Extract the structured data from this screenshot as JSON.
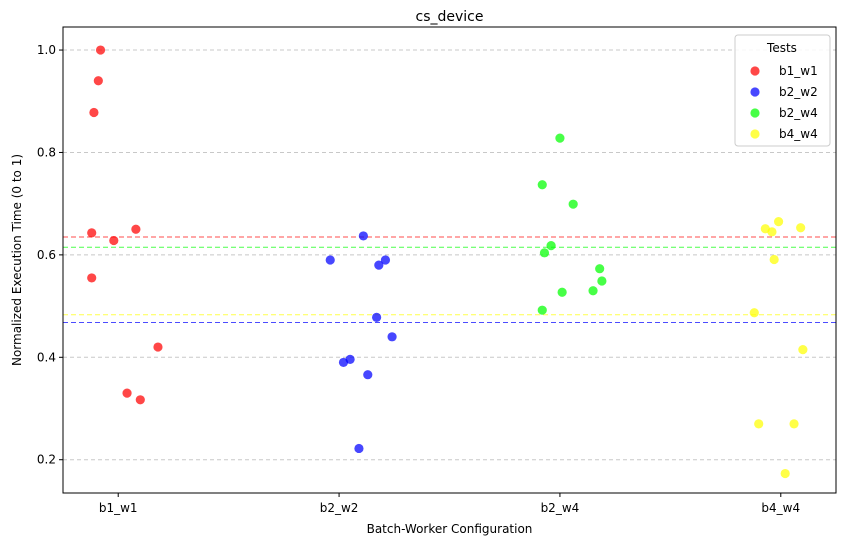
{
  "chart_data": {
    "type": "scatter",
    "title": "cs_device",
    "xlabel": "Batch-Worker Configuration",
    "ylabel": "Normalized Execution Time (0 to 1)",
    "categories": [
      "b1_w1",
      "b2_w2",
      "b2_w4",
      "b4_w4"
    ],
    "xlim": [
      -0.25,
      3.25
    ],
    "ylim": [
      0.135,
      1.045
    ],
    "y_ticks": [
      0.2,
      0.4,
      0.6,
      0.8,
      1.0
    ],
    "y_tick_labels": [
      "0.2",
      "0.4",
      "0.6",
      "0.8",
      "1.0"
    ],
    "grid": "horizontal dashed",
    "legend_title": "Tests",
    "legend_position": "top-right",
    "series": [
      {
        "name": "b1_w1",
        "color": "#ff0000",
        "mean": 0.635,
        "points": [
          {
            "x": -0.08,
            "y": 1.0
          },
          {
            "x": -0.09,
            "y": 0.94
          },
          {
            "x": -0.11,
            "y": 0.878
          },
          {
            "x": -0.12,
            "y": 0.643
          },
          {
            "x": -0.02,
            "y": 0.628
          },
          {
            "x": 0.08,
            "y": 0.65
          },
          {
            "x": -0.12,
            "y": 0.555
          },
          {
            "x": 0.18,
            "y": 0.42
          },
          {
            "x": 0.04,
            "y": 0.33
          },
          {
            "x": 0.1,
            "y": 0.317
          }
        ]
      },
      {
        "name": "b2_w2",
        "color": "#0000ff",
        "mean": 0.468,
        "points": [
          {
            "x": 0.96,
            "y": 0.59
          },
          {
            "x": 1.11,
            "y": 0.637
          },
          {
            "x": 1.18,
            "y": 0.58
          },
          {
            "x": 1.21,
            "y": 0.59
          },
          {
            "x": 1.17,
            "y": 0.478
          },
          {
            "x": 1.24,
            "y": 0.44
          },
          {
            "x": 1.02,
            "y": 0.39
          },
          {
            "x": 1.05,
            "y": 0.396
          },
          {
            "x": 1.13,
            "y": 0.366
          },
          {
            "x": 1.09,
            "y": 0.222
          }
        ]
      },
      {
        "name": "b2_w4",
        "color": "#00ff00",
        "mean": 0.615,
        "points": [
          {
            "x": 2.0,
            "y": 0.828
          },
          {
            "x": 1.92,
            "y": 0.737
          },
          {
            "x": 2.06,
            "y": 0.699
          },
          {
            "x": 1.93,
            "y": 0.604
          },
          {
            "x": 1.96,
            "y": 0.618
          },
          {
            "x": 2.18,
            "y": 0.573
          },
          {
            "x": 2.19,
            "y": 0.549
          },
          {
            "x": 2.01,
            "y": 0.527
          },
          {
            "x": 2.15,
            "y": 0.53
          },
          {
            "x": 1.92,
            "y": 0.492
          }
        ]
      },
      {
        "name": "b4_w4",
        "color": "#ffff00",
        "mean": 0.483,
        "points": [
          {
            "x": 2.93,
            "y": 0.651
          },
          {
            "x": 2.96,
            "y": 0.645
          },
          {
            "x": 2.99,
            "y": 0.665
          },
          {
            "x": 3.09,
            "y": 0.653
          },
          {
            "x": 2.97,
            "y": 0.591
          },
          {
            "x": 2.88,
            "y": 0.487
          },
          {
            "x": 3.1,
            "y": 0.415
          },
          {
            "x": 2.9,
            "y": 0.27
          },
          {
            "x": 3.06,
            "y": 0.27
          },
          {
            "x": 3.02,
            "y": 0.173
          }
        ]
      }
    ]
  }
}
